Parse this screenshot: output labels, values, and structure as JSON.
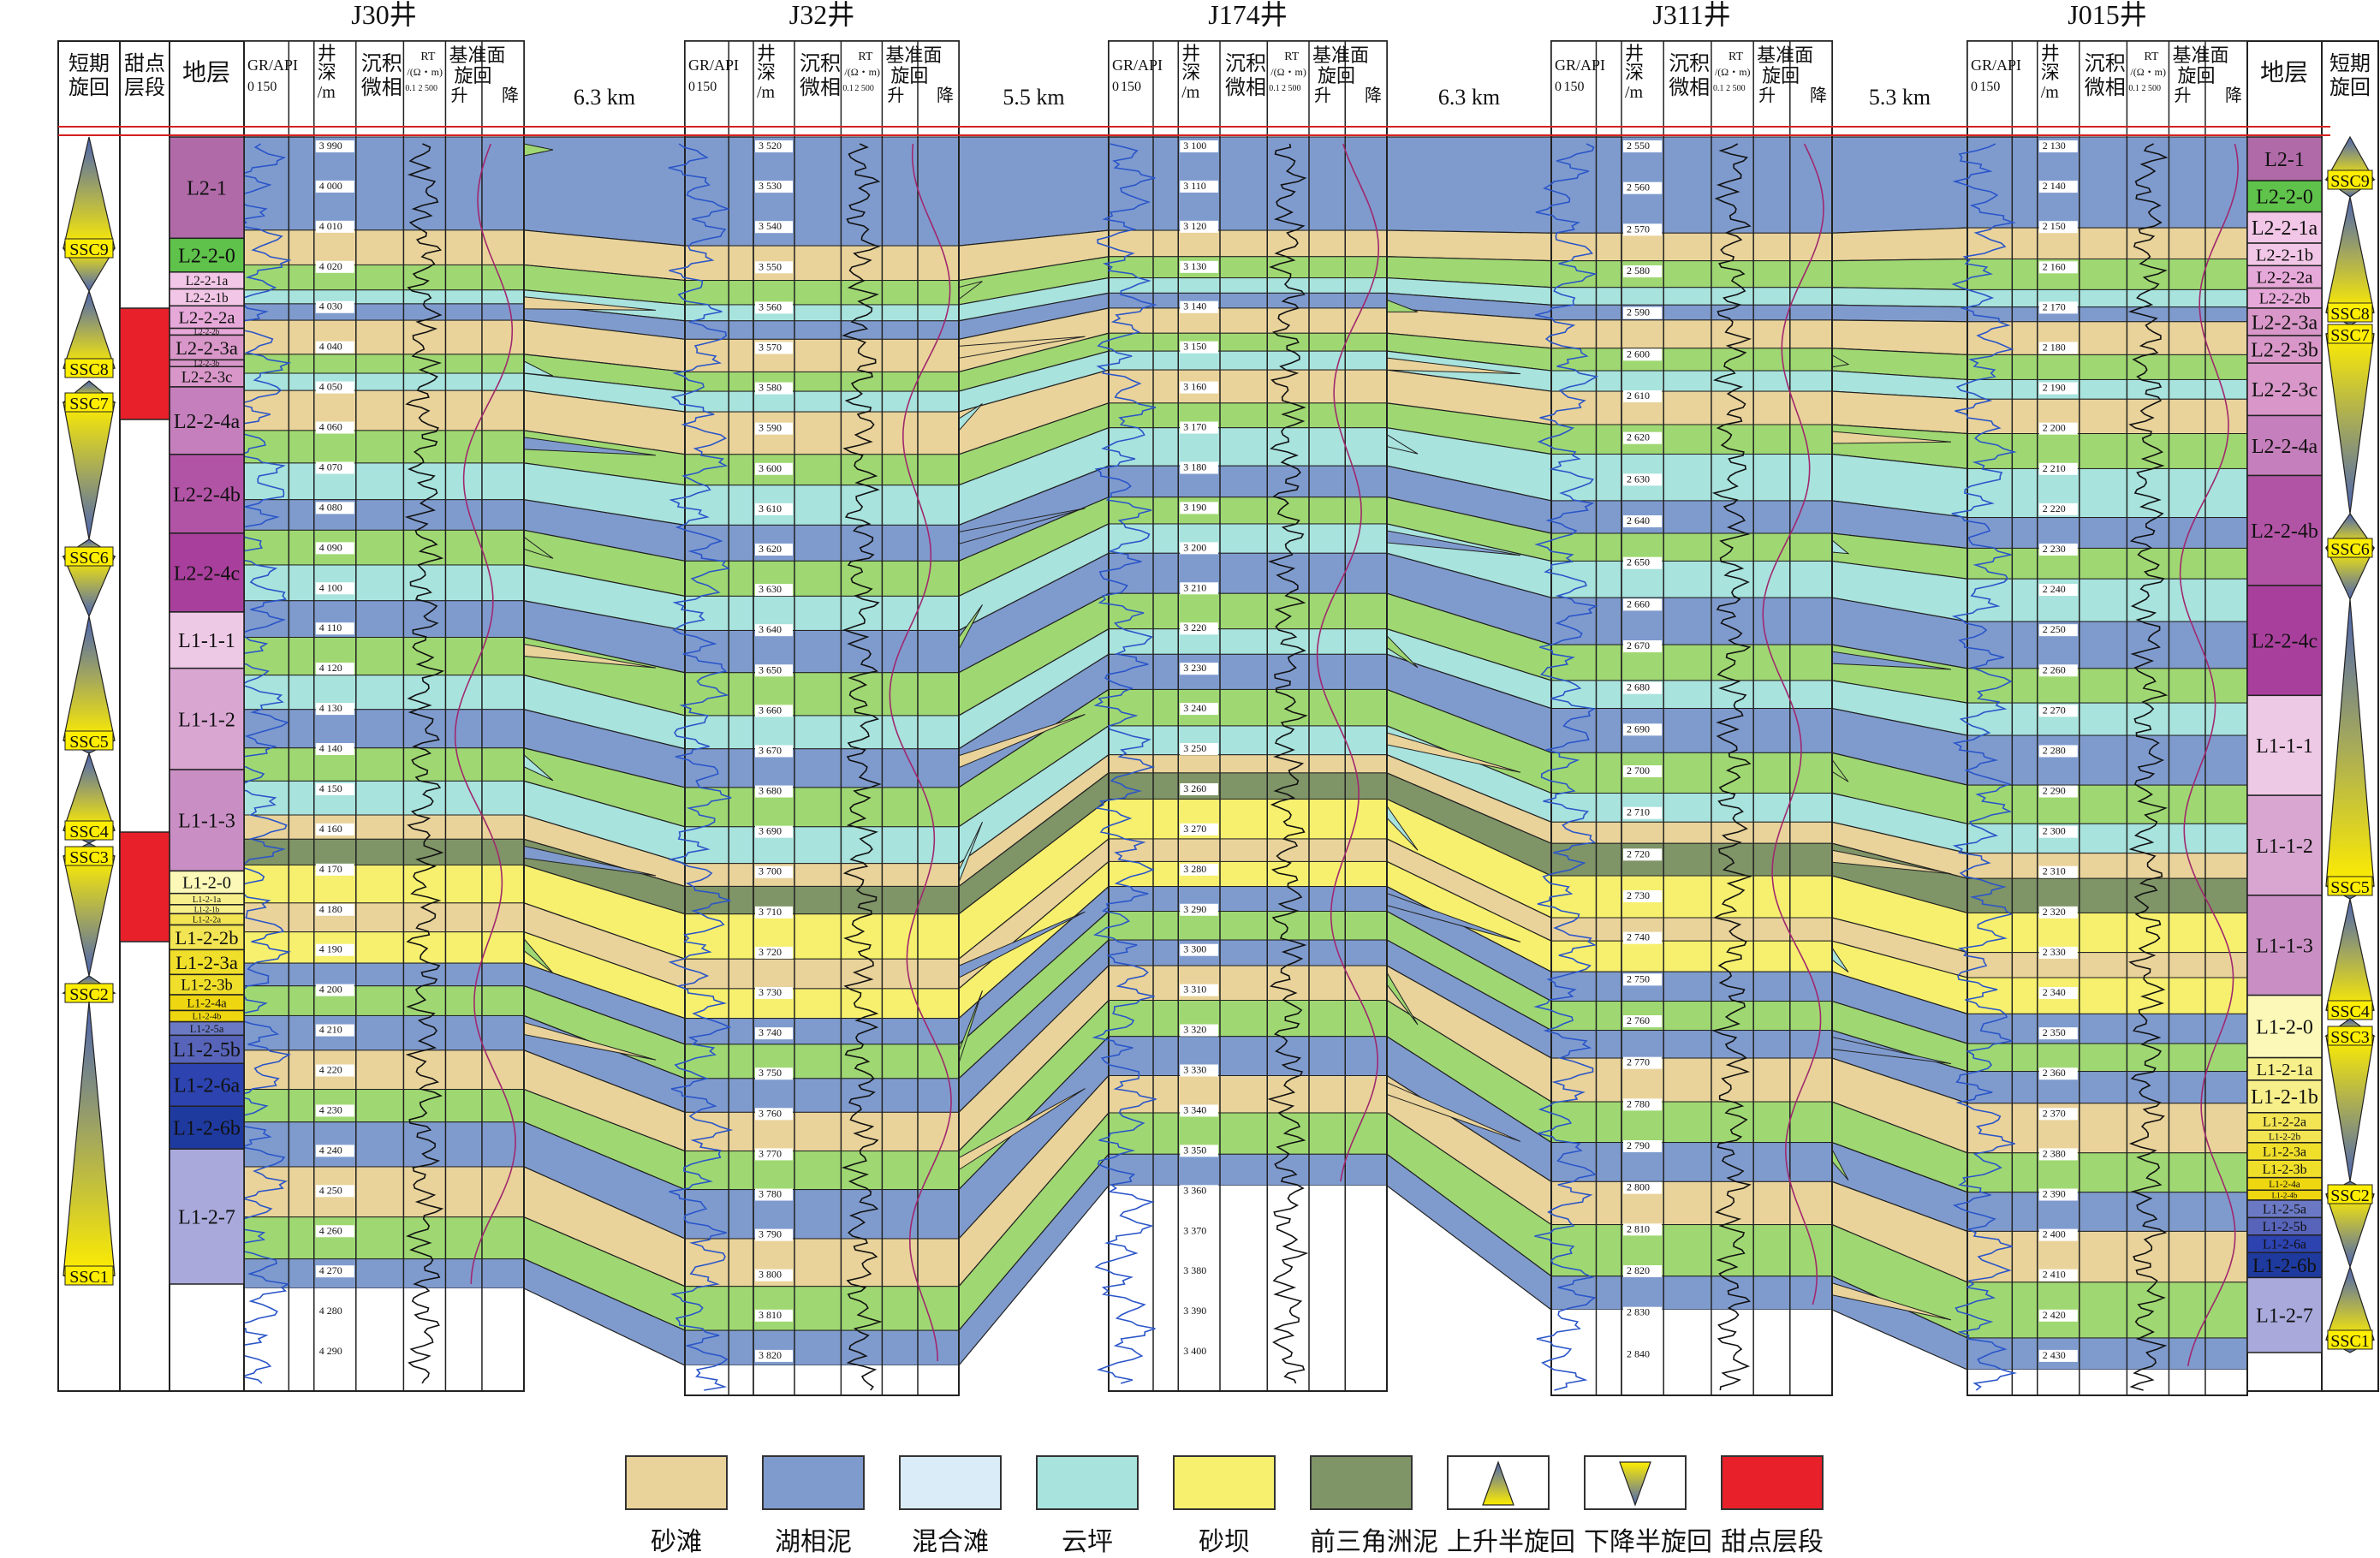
{
  "wells": [
    {
      "name": "J30井",
      "depth_ticks": [
        "3 990",
        "4 000",
        "4 010",
        "4 020",
        "4 030",
        "4 040",
        "4 050",
        "4 060",
        "4 070",
        "4 080",
        "4 090",
        "4 100",
        "4 110",
        "4 120",
        "4 130",
        "4 140",
        "4 150",
        "4 160",
        "4 170",
        "4 180",
        "4 190",
        "4 200",
        "4 210",
        "4 220",
        "4 230",
        "4 240",
        "4 250",
        "4 260",
        "4 270",
        "4 280",
        "4 290"
      ]
    },
    {
      "name": "J32井",
      "depth_ticks": [
        "3 520",
        "3 530",
        "3 540",
        "3 550",
        "3 560",
        "3 570",
        "3 580",
        "3 590",
        "3 600",
        "3 610",
        "3 620",
        "3 630",
        "3 640",
        "3 650",
        "3 660",
        "3 670",
        "3 680",
        "3 690",
        "3 700",
        "3 710",
        "3 720",
        "3 730",
        "3 740",
        "3 750",
        "3 760",
        "3 770",
        "3 780",
        "3 790",
        "3 800",
        "3 810",
        "3 820"
      ]
    },
    {
      "name": "J174井",
      "depth_ticks": [
        "3 100",
        "3 110",
        "3 120",
        "3 130",
        "3 140",
        "3 150",
        "3 160",
        "3 170",
        "3 180",
        "3 190",
        "3 200",
        "3 210",
        "3 220",
        "3 230",
        "3 240",
        "3 250",
        "3 260",
        "3 270",
        "3 280",
        "3 290",
        "3 300",
        "3 310",
        "3 320",
        "3 330",
        "3 340",
        "3 350",
        "3 360",
        "3 370",
        "3 380",
        "3 390",
        "3 400"
      ]
    },
    {
      "name": "J311井",
      "depth_ticks": [
        "2 550",
        "2 560",
        "2 570",
        "2 580",
        "2 590",
        "2 600",
        "2 610",
        "2 620",
        "2 630",
        "2 640",
        "2 650",
        "2 660",
        "2 670",
        "2 680",
        "2 690",
        "2 700",
        "2 710",
        "2 720",
        "2 730",
        "2 740",
        "2 750",
        "2 760",
        "2 770",
        "2 780",
        "2 790",
        "2 800",
        "2 810",
        "2 820",
        "2 830",
        "2 840"
      ]
    },
    {
      "name": "J015井",
      "depth_ticks": [
        "2 130",
        "2 140",
        "2 150",
        "2 160",
        "2 170",
        "2 180",
        "2 190",
        "2 200",
        "2 210",
        "2 220",
        "2 230",
        "2 240",
        "2 250",
        "2 260",
        "2 270",
        "2 280",
        "2 290",
        "2 300",
        "2 310",
        "2 320",
        "2 330",
        "2 340",
        "2 350",
        "2 360",
        "2 370",
        "2 380",
        "2 390",
        "2 400",
        "2 410",
        "2 420",
        "2 430"
      ]
    }
  ],
  "distances": [
    "6.3 km",
    "5.5 km",
    "6.3 km",
    "5.3 km"
  ],
  "headers": {
    "cycle": "短期旋回",
    "sweet": "甜点层段",
    "strata": "地层",
    "gr": "GR/API",
    "gr_range_min": "0",
    "gr_range_max": "150",
    "depth": "井深/m",
    "facies": "沉积微相",
    "rt": "RT",
    "rt_unit": "/(Ω・m)",
    "rt_min": "0.1",
    "rt_max": "2 500",
    "base": "基准面旋回",
    "rise": "升",
    "fall": "降"
  },
  "strata_left": [
    {
      "name": "L2-1",
      "color": "#b06aa8"
    },
    {
      "name": "L2-2-0",
      "color": "#5fc24a"
    },
    {
      "name": "L2-2-1a",
      "color": "#f2c6e6"
    },
    {
      "name": "L2-2-1b",
      "color": "#f2c6e6"
    },
    {
      "name": "L2-2-2a",
      "color": "#e6a8d8"
    },
    {
      "name": "L2-2-2b",
      "color": "#e6a8d8"
    },
    {
      "name": "L2-2-3a",
      "color": "#d897c8"
    },
    {
      "name": "L2-2-3b",
      "color": "#d897c8"
    },
    {
      "name": "L2-2-3c",
      "color": "#d897c8"
    },
    {
      "name": "L2-2-4a",
      "color": "#c57fbc"
    },
    {
      "name": "L2-2-4b",
      "color": "#b254a6"
    },
    {
      "name": "L2-2-4c",
      "color": "#a93f9c"
    },
    {
      "name": "L1-1-1",
      "color": "#eec9e6"
    },
    {
      "name": "L1-1-2",
      "color": "#d9a6d2"
    },
    {
      "name": "L1-1-3",
      "color": "#c98fc4"
    },
    {
      "name": "L1-2-0",
      "color": "#fbf8b8"
    },
    {
      "name": "L1-2-1a",
      "color": "#f7ef8a"
    },
    {
      "name": "L1-2-1b",
      "color": "#f7ef8a"
    },
    {
      "name": "L1-2-2a",
      "color": "#f2e452"
    },
    {
      "name": "L1-2-2b",
      "color": "#f2e452"
    },
    {
      "name": "L1-2-3a",
      "color": "#f0df2a"
    },
    {
      "name": "L1-2-3b",
      "color": "#f0df2a"
    },
    {
      "name": "L1-2-4a",
      "color": "#eed610"
    },
    {
      "name": "L1-2-4b",
      "color": "#eed610"
    },
    {
      "name": "L1-2-5a",
      "color": "#6b79c4"
    },
    {
      "name": "L1-2-5b",
      "color": "#5764b9"
    },
    {
      "name": "L1-2-6a",
      "color": "#2c43b0"
    },
    {
      "name": "L1-2-6b",
      "color": "#1f3a9f"
    },
    {
      "name": "L1-2-7",
      "color": "#a9a9dc"
    }
  ],
  "cycles": [
    "SSC9",
    "SSC8",
    "SSC7",
    "SSC6",
    "SSC5",
    "SSC4",
    "SSC3",
    "SSC2",
    "SSC1"
  ],
  "facies_colors": {
    "砂滩": "#e9d39a",
    "湖相泥": "#7f9bce",
    "混合滩": "#d9ecf8",
    "云坪": "#a8e3de",
    "砂坝": "#f6f06e",
    "前三角洲泥": "#7f9467",
    "green_marl": "#9fd872"
  },
  "legend": [
    {
      "label": "砂滩",
      "color": "#e9d39a"
    },
    {
      "label": "湖相泥",
      "color": "#7f9bce"
    },
    {
      "label": "混合滩",
      "color": "#d9ecf8"
    },
    {
      "label": "云坪",
      "color": "#a8e3de"
    },
    {
      "label": "砂坝",
      "color": "#f6f06e"
    },
    {
      "label": "前三角洲泥",
      "color": "#7f9467"
    },
    {
      "label": "上升半旋回",
      "color": "rising"
    },
    {
      "label": "下降半旋回",
      "color": "falling"
    },
    {
      "label": "甜点层段",
      "color": "#e8202a"
    }
  ]
}
